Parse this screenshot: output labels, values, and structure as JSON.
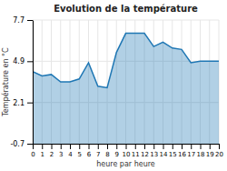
{
  "chart_data": {
    "type": "area",
    "title": "Evolution de la température",
    "xlabel": "heure par heure",
    "ylabel": "Température en °C",
    "x": [
      0,
      1,
      2,
      3,
      4,
      5,
      6,
      7,
      8,
      9,
      10,
      11,
      12,
      13,
      14,
      15,
      16,
      17,
      18,
      19,
      20
    ],
    "values": [
      4.2,
      3.9,
      4.0,
      3.5,
      3.5,
      3.7,
      4.8,
      3.2,
      3.1,
      5.5,
      6.8,
      6.8,
      6.8,
      5.9,
      6.2,
      5.8,
      5.7,
      4.8,
      4.9,
      4.9,
      4.9
    ],
    "xlim": [
      0,
      20
    ],
    "xticks": [
      0,
      1,
      2,
      3,
      4,
      5,
      6,
      7,
      8,
      9,
      10,
      11,
      12,
      13,
      14,
      15,
      16,
      17,
      18,
      19,
      20
    ],
    "ylim": [
      -0.7,
      7.7
    ],
    "yticks": [
      -0.7,
      2.1,
      4.9,
      7.7
    ],
    "grid": true
  }
}
